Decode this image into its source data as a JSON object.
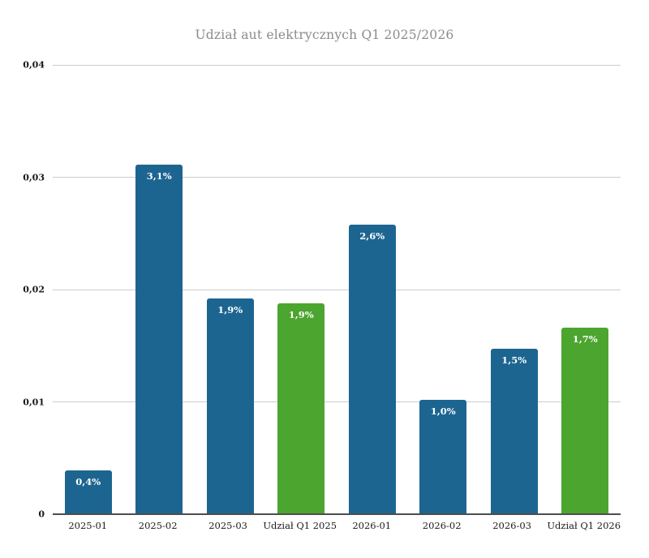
{
  "page": {
    "background_color": "#ffffff"
  },
  "chart_data": {
    "type": "bar",
    "title": "Udział aut elektrycznych Q1 2025/2026",
    "title_color": "#8b8b8b",
    "xlabel": "",
    "ylabel": "",
    "categories": [
      "2025-01",
      "2025-02",
      "2025-03",
      "Udział Q1 2025",
      "2026-01",
      "2026-02",
      "2026-03",
      "Udział Q1 2026"
    ],
    "values": [
      0.0039,
      0.0311,
      0.0192,
      0.0188,
      0.0258,
      0.0102,
      0.0147,
      0.0166
    ],
    "bar_labels": [
      "0,4%",
      "3,1%",
      "1,9%",
      "1,9%",
      "2,6%",
      "1,0%",
      "1,5%",
      "1,7%"
    ],
    "bar_colors": [
      "#1d6591",
      "#1d6591",
      "#1d6591",
      "#4ca52e",
      "#1d6591",
      "#1d6591",
      "#1d6591",
      "#4ca52e"
    ],
    "series_legend": {
      "monthly_color": "#1d6591",
      "quarter_share_color": "#4ca52e"
    },
    "ylim": [
      0,
      0.04
    ],
    "yticks": [
      {
        "value": 0,
        "label": "0"
      },
      {
        "value": 0.01,
        "label": "0,01"
      },
      {
        "value": 0.02,
        "label": "0,02"
      },
      {
        "value": 0.03,
        "label": "0,03"
      },
      {
        "value": 0.04,
        "label": "0,04"
      }
    ],
    "grid": true,
    "legend_position": "none",
    "value_label_color": "#ffffff",
    "gridline_color": "#cccccc",
    "axis_line_color": "#4d4d4d",
    "tick_label_color": "#1a1a1a"
  }
}
